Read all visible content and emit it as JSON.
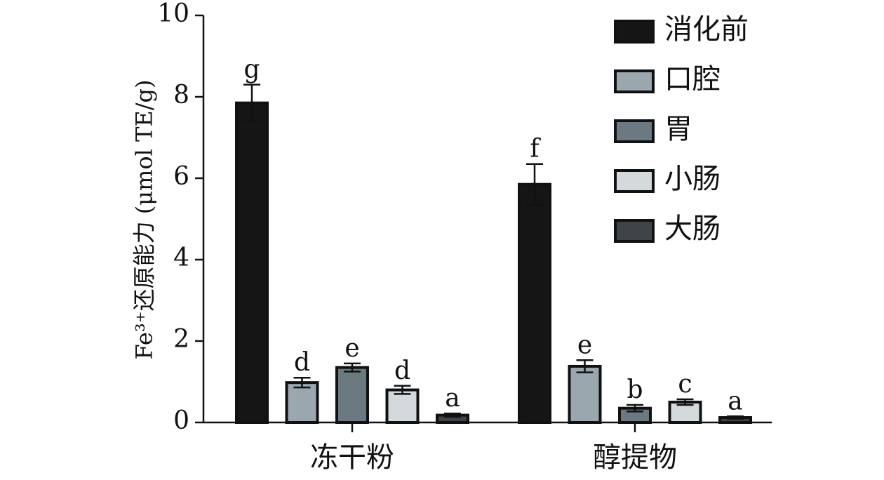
{
  "chart_data": {
    "type": "bar",
    "ylabel": "Fe³⁺还原能力 (μmol TE/g)",
    "ylim": [
      0,
      10
    ],
    "yticks": [
      "0",
      "2",
      "4",
      "6",
      "8",
      "10"
    ],
    "categories": [
      "冻干粉",
      "醇提物"
    ],
    "grid": false,
    "legend_position": "top-right",
    "series": [
      {
        "name": "消化前",
        "color": "#151515",
        "values": [
          7.85,
          5.85
        ],
        "errors": [
          0.45,
          0.5
        ],
        "sig": [
          "g",
          "f"
        ]
      },
      {
        "name": "口腔",
        "color": "#9aa7af",
        "values": [
          0.98,
          1.38
        ],
        "errors": [
          0.12,
          0.15
        ],
        "sig": [
          "d",
          "e"
        ]
      },
      {
        "name": "胃",
        "color": "#6b7a80",
        "values": [
          1.35,
          0.35
        ],
        "errors": [
          0.1,
          0.08
        ],
        "sig": [
          "e",
          "b"
        ]
      },
      {
        "name": "小肠",
        "color": "#d4d9dc",
        "values": [
          0.8,
          0.5
        ],
        "errors": [
          0.1,
          0.07
        ],
        "sig": [
          "d",
          "c"
        ]
      },
      {
        "name": "大肠",
        "color": "#3e4447",
        "values": [
          0.18,
          0.12
        ],
        "errors": [
          0.04,
          0.03
        ],
        "sig": [
          "a",
          "a"
        ]
      }
    ]
  }
}
